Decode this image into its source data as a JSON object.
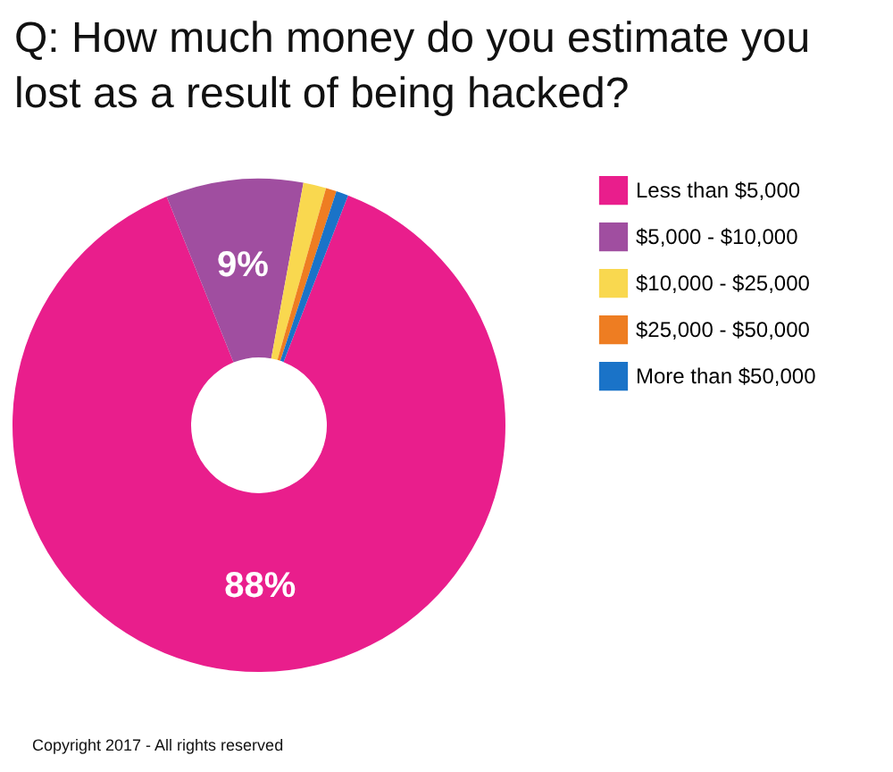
{
  "chart_data": {
    "type": "donut",
    "title": "Q: How much money do you estimate you lost as a result of being hacked?",
    "categories": [
      "Less than $5,000",
      "$5,000 - $10,000",
      "$10,000 - $25,000",
      "$25,000 - $50,000",
      "More than $50,000"
    ],
    "values": [
      88,
      9,
      1.5,
      0.7,
      0.8
    ],
    "colors": [
      "#e91e8c",
      "#a04ea0",
      "#f9d84f",
      "#ee7d22",
      "#1a73c8"
    ],
    "value_labels": [
      "88%",
      "9%",
      null,
      null,
      null
    ],
    "legend": "right",
    "annotations": [
      "Copyright 2017 - All rights reserved"
    ]
  }
}
